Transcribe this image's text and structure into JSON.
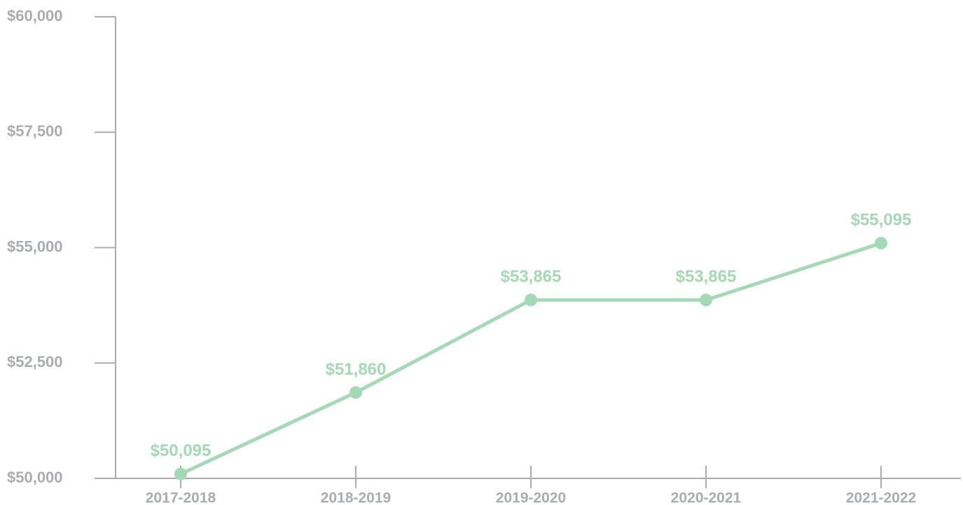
{
  "chart_data": {
    "type": "line",
    "categories": [
      "2017-2018",
      "2018-2019",
      "2019-2020",
      "2020-2021",
      "2021-2022"
    ],
    "series": [
      {
        "color": "#a3d9b5",
        "values": [
          50095,
          51860,
          53865,
          53865,
          55095
        ],
        "value_labels": [
          "$50,095",
          "$51,860",
          "$53,865",
          "$53,865",
          "$55,095"
        ]
      }
    ],
    "ylim": [
      50000,
      60000
    ],
    "yticks": [
      {
        "value": 50000,
        "label": "$50,000"
      },
      {
        "value": 52500,
        "label": "$52,500"
      },
      {
        "value": 55000,
        "label": "$55,000"
      },
      {
        "value": 57500,
        "label": "$57,500"
      },
      {
        "value": 60000,
        "label": "$60,000"
      }
    ],
    "axis_color": "#a7adb0"
  }
}
